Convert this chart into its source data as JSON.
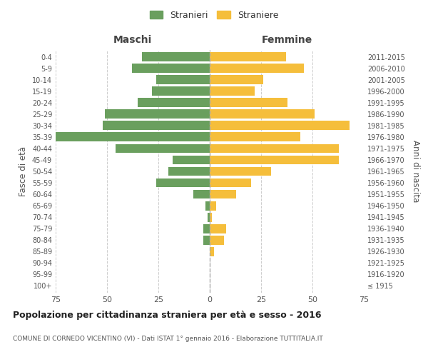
{
  "age_groups": [
    "100+",
    "95-99",
    "90-94",
    "85-89",
    "80-84",
    "75-79",
    "70-74",
    "65-69",
    "60-64",
    "55-59",
    "50-54",
    "45-49",
    "40-44",
    "35-39",
    "30-34",
    "25-29",
    "20-24",
    "15-19",
    "10-14",
    "5-9",
    "0-4"
  ],
  "birth_years": [
    "≤ 1915",
    "1916-1920",
    "1921-1925",
    "1926-1930",
    "1931-1935",
    "1936-1940",
    "1941-1945",
    "1946-1950",
    "1951-1955",
    "1956-1960",
    "1961-1965",
    "1966-1970",
    "1971-1975",
    "1976-1980",
    "1981-1985",
    "1986-1990",
    "1991-1995",
    "1996-2000",
    "2001-2005",
    "2006-2010",
    "2011-2015"
  ],
  "maschi": [
    0,
    0,
    0,
    0,
    3,
    3,
    1,
    2,
    8,
    26,
    20,
    18,
    46,
    75,
    52,
    51,
    35,
    28,
    26,
    38,
    33
  ],
  "femmine": [
    0,
    0,
    0,
    2,
    7,
    8,
    1,
    3,
    13,
    20,
    30,
    63,
    63,
    44,
    68,
    51,
    38,
    22,
    26,
    46,
    37
  ],
  "male_color": "#6a9f5e",
  "female_color": "#f5be3b",
  "background_color": "#ffffff",
  "grid_color": "#cccccc",
  "title": "Popolazione per cittadinanza straniera per età e sesso - 2016",
  "subtitle": "COMUNE DI CORNEDO VICENTINO (VI) - Dati ISTAT 1° gennaio 2016 - Elaborazione TUTTITALIA.IT",
  "ylabel_left": "Fasce di età",
  "ylabel_right": "Anni di nascita",
  "header_left": "Maschi",
  "header_right": "Femmine",
  "legend_male": "Stranieri",
  "legend_female": "Straniere",
  "xlim": 75,
  "bar_height": 0.8,
  "figsize": [
    6.0,
    5.0
  ],
  "dpi": 100
}
